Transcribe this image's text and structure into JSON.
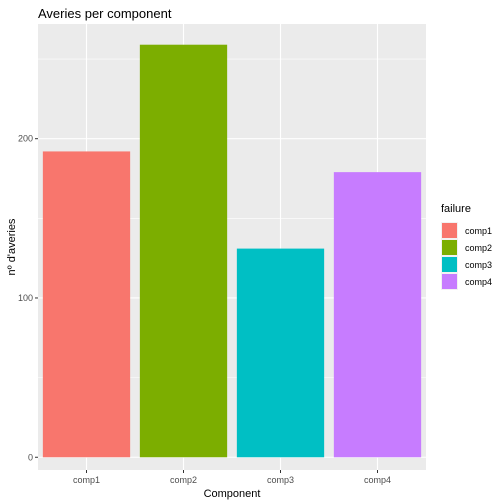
{
  "chart_data": {
    "type": "bar",
    "title": "Averies per component",
    "xlabel": "Component",
    "ylabel": "nº d'averies",
    "categories": [
      "comp1",
      "comp2",
      "comp3",
      "comp4"
    ],
    "values": [
      192,
      259,
      131,
      179
    ],
    "colors": [
      "#F8766D",
      "#7CAE00",
      "#00BFC4",
      "#C77CFF"
    ],
    "ylim": [
      -8,
      272
    ],
    "yticks": [
      0,
      100,
      200
    ],
    "grid": true,
    "legend": {
      "title": "failure",
      "position": "right",
      "items": [
        "comp1",
        "comp2",
        "comp3",
        "comp4"
      ]
    }
  }
}
